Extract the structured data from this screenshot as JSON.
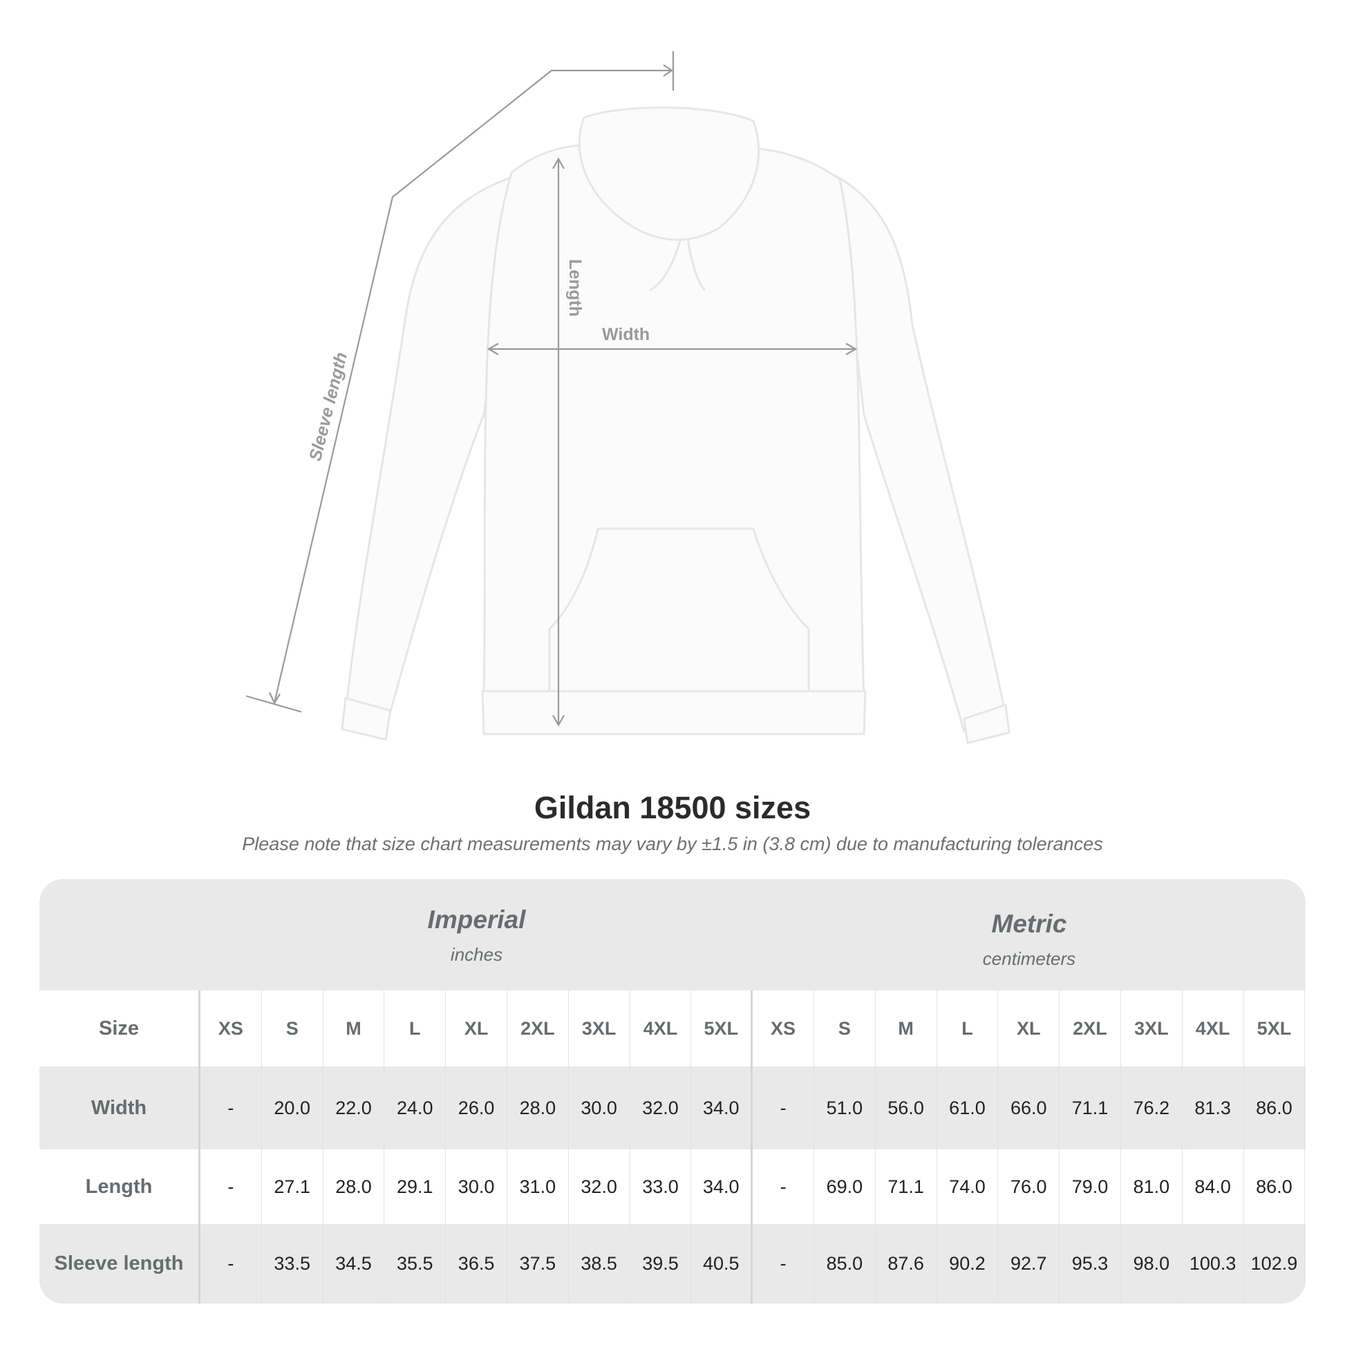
{
  "diagram": {
    "width_label": "Width",
    "length_label": "Length",
    "sleeve_label": "Sleeve length"
  },
  "title": "Gildan 18500 sizes",
  "subtitle": "Please note that size chart measurements may vary by ±1.5 in (3.8 cm) due to manufacturing tolerances",
  "table": {
    "imperial": {
      "name": "Imperial",
      "unit": "inches"
    },
    "metric": {
      "name": "Metric",
      "unit": "centimeters"
    },
    "size_label": "Size",
    "sizes": [
      "XS",
      "S",
      "M",
      "L",
      "XL",
      "2XL",
      "3XL",
      "4XL",
      "5XL",
      "XS",
      "S",
      "M",
      "L",
      "XL",
      "2XL",
      "3XL",
      "4XL",
      "5XL"
    ],
    "rows": [
      {
        "label": "Width",
        "values": [
          "-",
          "20.0",
          "22.0",
          "24.0",
          "26.0",
          "28.0",
          "30.0",
          "32.0",
          "34.0",
          "-",
          "51.0",
          "56.0",
          "61.0",
          "66.0",
          "71.1",
          "76.2",
          "81.3",
          "86.0"
        ]
      },
      {
        "label": "Length",
        "values": [
          "-",
          "27.1",
          "28.0",
          "29.1",
          "30.0",
          "31.0",
          "32.0",
          "33.0",
          "34.0",
          "-",
          "69.0",
          "71.1",
          "74.0",
          "76.0",
          "79.0",
          "81.0",
          "84.0",
          "86.0"
        ]
      },
      {
        "label": "Sleeve length",
        "values": [
          "-",
          "33.5",
          "34.5",
          "35.5",
          "36.5",
          "37.5",
          "38.5",
          "39.5",
          "40.5",
          "-",
          "85.0",
          "87.6",
          "90.2",
          "92.7",
          "95.3",
          "98.0",
          "100.3",
          "102.9"
        ]
      }
    ]
  },
  "colors": {
    "header_bg": "#e9e9e9",
    "label_text": "#676c6e",
    "guide_line": "#9a9a9a"
  }
}
